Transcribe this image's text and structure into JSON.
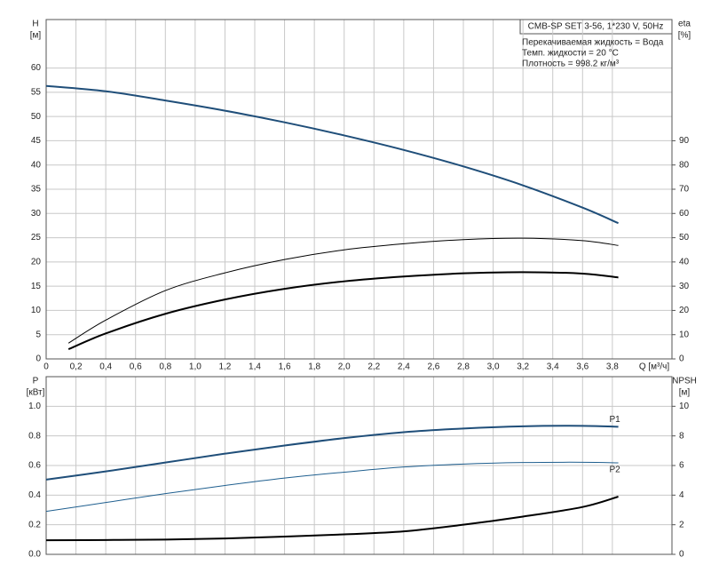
{
  "chart_data": [
    {
      "type": "line",
      "ylabel": "H",
      "yunit": "[м]",
      "y2label": "eta",
      "y2unit": "[%]",
      "xlabel": "Q [м³/ч]",
      "title": "CMB-SP SET 3-56, 1*230 V, 50Hz",
      "annotations": [
        "Перекачиваемая жидкость = Вода",
        "Темп. жидкости = 20 °C",
        "Плотность = 998.2 кг/м³"
      ],
      "xlim": [
        0,
        4.2
      ],
      "xticks": [
        0,
        {
          "value": 0.2,
          "label": "0,2"
        },
        {
          "value": 0.4,
          "label": "0,4"
        },
        {
          "value": 0.6,
          "label": "0,6"
        },
        {
          "value": 0.8,
          "label": "0,8"
        },
        {
          "value": 1.0,
          "label": "1,0"
        },
        {
          "value": 1.2,
          "label": "1,2"
        },
        {
          "value": 1.4,
          "label": "1,4"
        },
        {
          "value": 1.6,
          "label": "1,6"
        },
        {
          "value": 1.8,
          "label": "1,8"
        },
        {
          "value": 2.0,
          "label": "2,0"
        },
        {
          "value": 2.2,
          "label": "2,2"
        },
        {
          "value": 2.4,
          "label": "2,4"
        },
        {
          "value": 2.6,
          "label": "2,6"
        },
        {
          "value": 2.8,
          "label": "2,8"
        },
        {
          "value": 3.0,
          "label": "3,0"
        },
        {
          "value": 3.2,
          "label": "3,2"
        },
        {
          "value": 3.4,
          "label": "3,4"
        },
        {
          "value": 3.6,
          "label": "3,6"
        },
        {
          "value": 3.8,
          "label": "3,8"
        }
      ],
      "ylim": [
        0,
        70
      ],
      "yticks": [
        0,
        5,
        10,
        15,
        20,
        25,
        30,
        35,
        40,
        45,
        50,
        55,
        60
      ],
      "y2lim": [
        0,
        140
      ],
      "y2ticks": [
        0,
        10,
        20,
        30,
        40,
        50,
        60,
        70,
        80,
        90
      ],
      "grid": true,
      "series": [
        {
          "color": "#1f4e79",
          "width": 2,
          "x": [
            0,
            0.4,
            0.8,
            1.2,
            1.6,
            2.0,
            2.4,
            2.8,
            3.2,
            3.6,
            3.84
          ],
          "values": [
            56.3,
            55.2,
            53.3,
            51.2,
            48.8,
            46.1,
            43.1,
            39.7,
            35.8,
            31.2,
            28.0
          ]
        },
        {
          "color": "#000000",
          "width": 1,
          "axis": "y2",
          "x": [
            0.15,
            0.4,
            0.8,
            1.2,
            1.6,
            2.0,
            2.4,
            2.8,
            3.2,
            3.6,
            3.84
          ],
          "values": [
            6.5,
            16,
            28.2,
            35.5,
            41,
            45,
            47.5,
            49.2,
            49.8,
            48.8,
            46.8
          ]
        },
        {
          "color": "#000000",
          "width": 2,
          "axis": "y2",
          "x": [
            0.15,
            0.4,
            0.8,
            1.2,
            1.6,
            2.0,
            2.4,
            2.8,
            3.2,
            3.6,
            3.84
          ],
          "values": [
            4,
            10.5,
            18.6,
            24.5,
            28.9,
            32,
            34,
            35.3,
            35.8,
            35.2,
            33.6
          ]
        }
      ]
    },
    {
      "type": "line",
      "ylabel": "P",
      "yunit": "[кВт]",
      "y2label": "NPSH",
      "y2unit": "[м]",
      "xlim": [
        0,
        4.2
      ],
      "xticks": [
        0,
        0.2,
        0.4,
        0.6,
        0.8,
        1.0,
        1.2,
        1.4,
        1.6,
        1.8,
        2.0,
        2.2,
        2.4,
        2.6,
        2.8,
        3.0,
        3.2,
        3.4,
        3.6,
        3.8
      ],
      "ylim": [
        0,
        1.2
      ],
      "yticks": [
        {
          "value": 0,
          "label": "0.0"
        },
        0.2,
        0.4,
        0.6,
        0.8,
        {
          "value": 1,
          "label": "1.0"
        }
      ],
      "y2lim": [
        0,
        12
      ],
      "y2ticks": [
        0,
        2,
        4,
        6,
        8,
        10
      ],
      "grid": true,
      "series": [
        {
          "name": "P1",
          "color": "#1f4e79",
          "width": 2,
          "x": [
            0,
            0.4,
            0.8,
            1.2,
            1.6,
            2.0,
            2.4,
            2.8,
            3.2,
            3.6,
            3.84
          ],
          "values": [
            0.505,
            0.56,
            0.62,
            0.68,
            0.735,
            0.785,
            0.825,
            0.85,
            0.865,
            0.868,
            0.862
          ]
        },
        {
          "name": "P2",
          "color": "#1f5f8f",
          "width": 1,
          "x": [
            0,
            0.4,
            0.8,
            1.2,
            1.6,
            2.0,
            2.4,
            2.8,
            3.2,
            3.6,
            3.84
          ],
          "values": [
            0.29,
            0.35,
            0.41,
            0.465,
            0.515,
            0.555,
            0.59,
            0.61,
            0.62,
            0.622,
            0.618
          ]
        },
        {
          "color": "#000000",
          "width": 2,
          "axis": "y2",
          "x": [
            0,
            0.4,
            0.8,
            1.2,
            1.6,
            2.0,
            2.4,
            2.8,
            3.2,
            3.6,
            3.84
          ],
          "values": [
            0.95,
            0.97,
            1.0,
            1.07,
            1.2,
            1.35,
            1.55,
            2.0,
            2.55,
            3.2,
            3.9
          ]
        }
      ]
    }
  ]
}
